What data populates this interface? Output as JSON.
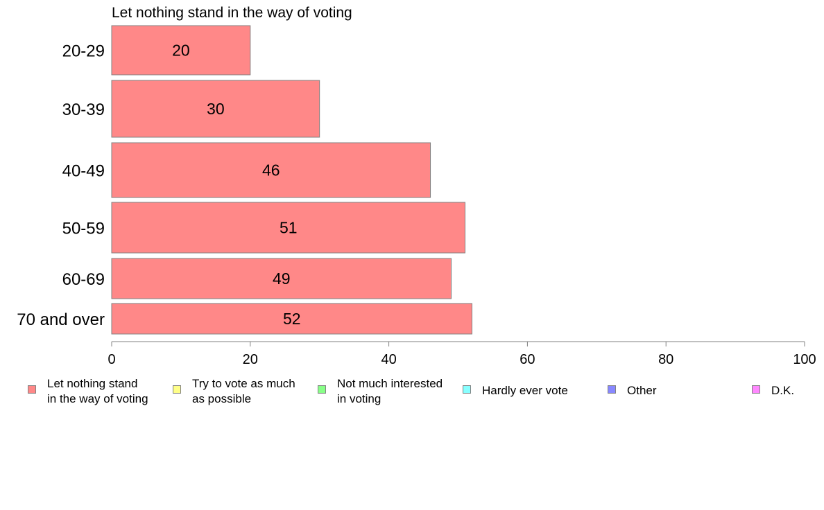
{
  "chart_data": {
    "type": "bar",
    "orientation": "horizontal",
    "title": "Let nothing stand in the way of voting",
    "categories": [
      "20-29",
      "30-39",
      "40-49",
      "50-59",
      "60-69",
      "70 and over"
    ],
    "values": [
      20,
      30,
      46,
      51,
      49,
      52
    ],
    "value_labels": [
      "20",
      "30",
      "46",
      "51",
      "49",
      "52"
    ],
    "xlim": [
      0,
      100
    ],
    "xticks": [
      0,
      20,
      40,
      60,
      80,
      100
    ],
    "xtick_labels": [
      "0",
      "20",
      "40",
      "60",
      "80",
      "100"
    ],
    "bar_color": "#ff8888",
    "grid": false,
    "legend_position": "bottom",
    "legend": [
      {
        "label": "Let nothing stand\nin the way of voting",
        "color": "#ff8888"
      },
      {
        "label": "Try to vote as much\nas possible",
        "color": "#ffff88"
      },
      {
        "label": "Not much interested\nin voting",
        "color": "#88ff88"
      },
      {
        "label": "Hardly ever vote",
        "color": "#88ffff"
      },
      {
        "label": "Other",
        "color": "#8888ff"
      },
      {
        "label": "D.K.",
        "color": "#ff88ff"
      }
    ]
  }
}
